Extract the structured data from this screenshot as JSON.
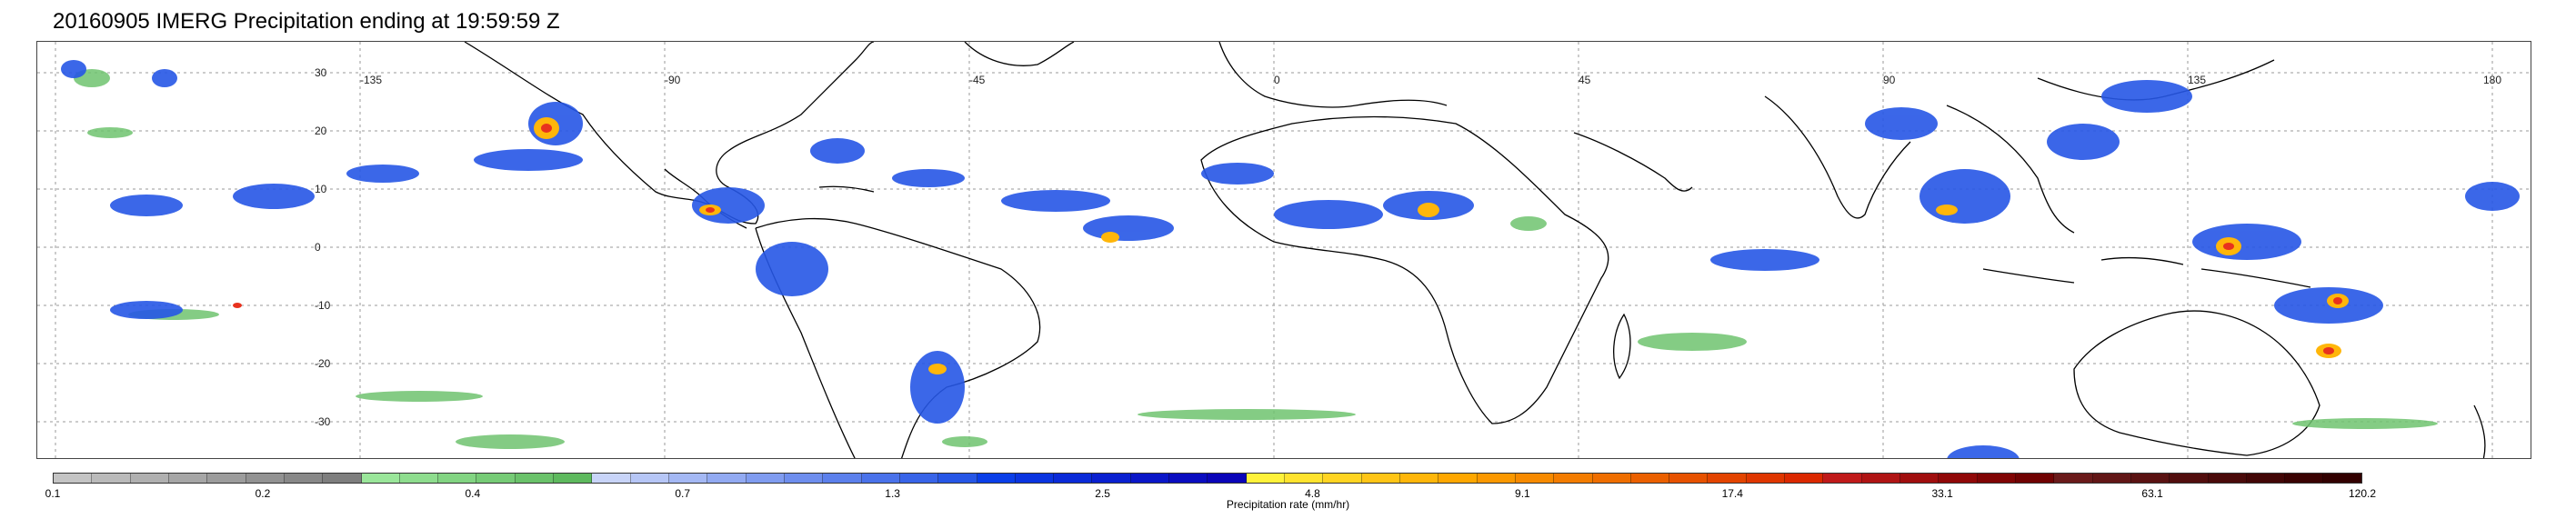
{
  "title": "20160905 IMERG Precipitation ending at 19:59:59 Z",
  "map": {
    "lat_labels": [
      "30",
      "20",
      "10",
      "0",
      "-10",
      "-20",
      "-30"
    ],
    "lon_labels": [
      "-135",
      "-90",
      "-45",
      "0",
      "45",
      "90",
      "135",
      "180"
    ],
    "colors": {
      "coastline": "#000000",
      "gridline": "#999999",
      "light_rain": "#6fc36f",
      "moderate": "#1e5af0",
      "heavy": "#ffd500",
      "intense": "#e8321e",
      "extreme": "#5a0a0a"
    }
  },
  "colorbar": {
    "label": "Precipitation rate (mm/hr)",
    "tick_labels": [
      "0.1",
      "0.2",
      "0.4",
      "0.7",
      "1.3",
      "2.5",
      "4.8",
      "9.1",
      "17.4",
      "33.1",
      "63.1",
      "120.2"
    ],
    "colors": [
      "#c4c4c4",
      "#bababa",
      "#b0b0b0",
      "#a6a6a6",
      "#9c9c9c",
      "#929292",
      "#888888",
      "#7e7e7e",
      "#9ae69a",
      "#8edd8e",
      "#82d482",
      "#76cb76",
      "#6ac26a",
      "#5eb95e",
      "#c8d4f8",
      "#b6c6f6",
      "#a4b8f4",
      "#92aaf2",
      "#809cf0",
      "#6e8eee",
      "#5c80ec",
      "#4a72ea",
      "#3864e8",
      "#2656e6",
      "#0a3ee8",
      "#0a34e0",
      "#0a2ad8",
      "#0a20d0",
      "#0a16c8",
      "#0a0cc0",
      "#0a04b8",
      "#fff23a",
      "#ffe32e",
      "#ffd422",
      "#ffc516",
      "#ffb60a",
      "#ffa700",
      "#fb9800",
      "#f78a00",
      "#f37c00",
      "#ef6e00",
      "#eb6000",
      "#e75200",
      "#e34400",
      "#df3600",
      "#db2800",
      "#c01a1a",
      "#b01414",
      "#a00e0e",
      "#900808",
      "#800404",
      "#700202",
      "#6a1a1a",
      "#621616",
      "#5a1212",
      "#520e0e",
      "#4a0a0a",
      "#420606",
      "#3a0202",
      "#320000"
    ]
  }
}
